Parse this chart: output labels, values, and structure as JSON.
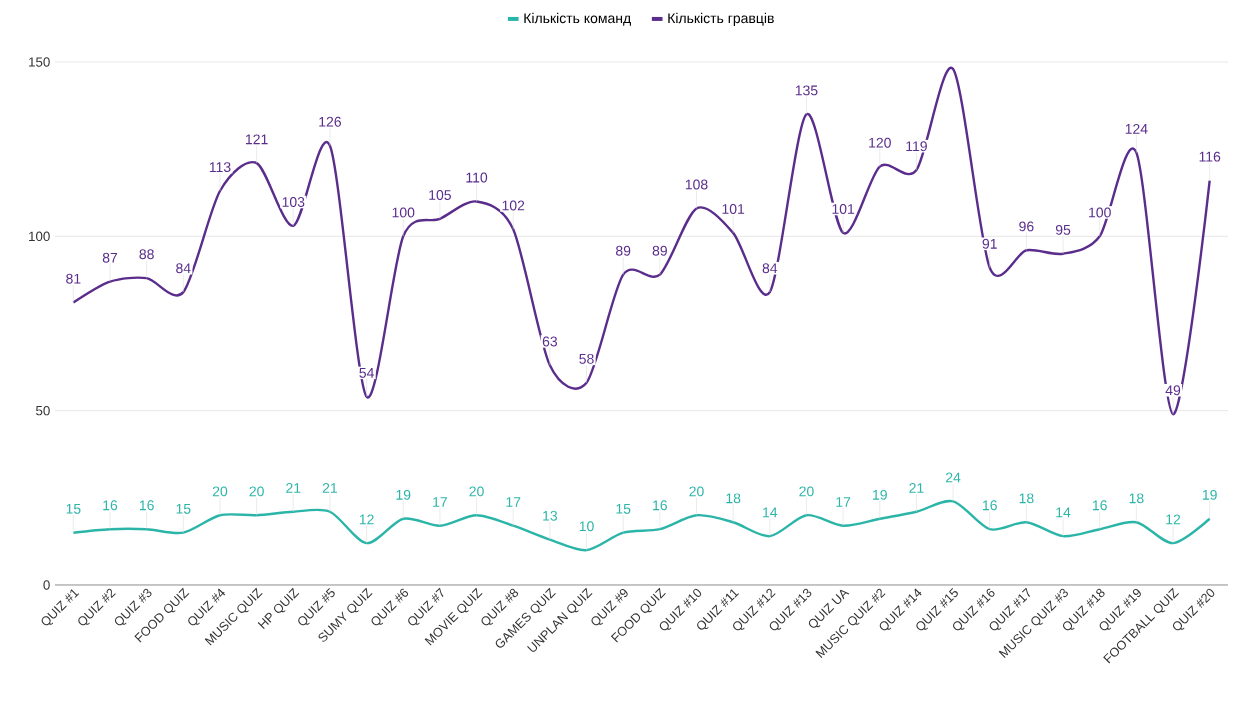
{
  "chart_data": {
    "type": "line",
    "categories": [
      "QUIZ #1",
      "QUIZ #2",
      "QUIZ #3",
      "FOOD QUIZ",
      "QUIZ #4",
      "MUSIC QUIZ",
      "HP QUIZ",
      "QUIZ #5",
      "SUMY QUIZ",
      "QUIZ #6",
      "QUIZ #7",
      "MOVIE QUIZ",
      "QUIZ #8",
      "GAMES QUIZ",
      "UNPLAN QUIZ",
      "QUIZ #9",
      "FOOD QUIZ",
      "QUIZ #10",
      "QUIZ #11",
      "QUIZ #12",
      "QUIZ #13",
      "QUIZ UA",
      "MUSIC QUIZ #2",
      "QUIZ #14",
      "QUIZ #15",
      "QUIZ #16",
      "QUIZ #17",
      "MUSIC QUIZ #3",
      "QUIZ #18",
      "QUIZ #19",
      "FOOTBALL QUIZ",
      "QUIZ #20"
    ],
    "series": [
      {
        "name": "Кількість команд",
        "color": "#2bb5a8",
        "values": [
          15,
          16,
          16,
          15,
          20,
          20,
          21,
          21,
          12,
          19,
          17,
          20,
          17,
          13,
          10,
          15,
          16,
          20,
          18,
          14,
          20,
          17,
          19,
          21,
          24,
          16,
          18,
          14,
          16,
          18,
          12,
          19
        ],
        "value_labels": [
          "15",
          "16",
          "16",
          "15",
          "20",
          "20",
          "21",
          "21",
          "12",
          "19",
          "17",
          "20",
          "17",
          "13",
          "10",
          "15",
          "16",
          "20",
          "18",
          "14",
          "20",
          "17",
          "19",
          "21",
          "24",
          "16",
          "18",
          "14",
          "16",
          "18",
          "12",
          "19"
        ]
      },
      {
        "name": "Кількість гравців",
        "color": "#5a2d8c",
        "values": [
          81,
          87,
          88,
          84,
          113,
          121,
          103,
          126,
          54,
          100,
          105,
          110,
          102,
          63,
          58,
          89,
          89,
          108,
          101,
          84,
          135,
          101,
          120,
          119,
          148,
          91,
          96,
          95,
          100,
          124,
          49,
          116
        ],
        "value_labels": [
          "81",
          "87",
          "88",
          "84",
          "113",
          "121",
          "103",
          "126",
          "54",
          "100",
          "105",
          "110",
          "102",
          "63",
          "58",
          "89",
          "89",
          "108",
          "101",
          "84",
          "135",
          "101",
          "120",
          "119",
          null,
          "91",
          "96",
          "95",
          "100",
          "124",
          "49",
          "116"
        ]
      }
    ],
    "ylim": [
      0,
      150
    ],
    "yticks": [
      0,
      50,
      100,
      150
    ],
    "grid": "y",
    "legend": "top",
    "line_style": "solid",
    "marker": "none"
  }
}
